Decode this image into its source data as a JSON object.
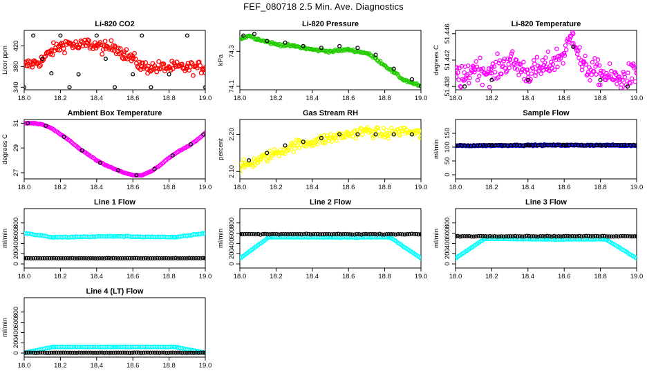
{
  "title": "FEF_080718  2.5 Min. Ave. Diagnostics",
  "colors": {
    "red": "#ff0000",
    "green": "#22cc00",
    "magenta": "#ff00ff",
    "yellow": "#ffff00",
    "blue": "#0000cc",
    "cyan": "#00ffff",
    "black": "#000000"
  },
  "chart_data": [
    {
      "type": "scatter",
      "title": "Li-820 CO2",
      "ylabel": "Licor ppm",
      "xlim": [
        18.0,
        19.0
      ],
      "ylim": [
        335,
        450
      ],
      "xticks": [
        "18.0",
        "18.2",
        "18.4",
        "18.6",
        "18.8",
        "19.0"
      ],
      "yticks": [
        "340",
        "380",
        "420"
      ],
      "series": [
        {
          "color": "red",
          "points": [
            [
              18.0,
              382
            ],
            [
              18.05,
              386
            ],
            [
              18.1,
              392
            ],
            [
              18.15,
              410
            ],
            [
              18.2,
              420
            ],
            [
              18.25,
              425
            ],
            [
              18.3,
              418
            ],
            [
              18.35,
              425
            ],
            [
              18.4,
              420
            ],
            [
              18.45,
              415
            ],
            [
              18.5,
              420
            ],
            [
              18.55,
              405
            ],
            [
              18.6,
              395
            ],
            [
              18.65,
              380
            ],
            [
              18.7,
              378
            ],
            [
              18.8,
              378
            ],
            [
              18.9,
              378
            ],
            [
              19.0,
              378
            ]
          ]
        },
        {
          "color": "black",
          "points": [
            [
              18.0,
              340
            ],
            [
              18.05,
              440
            ],
            [
              18.1,
              395
            ],
            [
              18.15,
              367
            ],
            [
              18.2,
              440
            ],
            [
              18.25,
              340
            ],
            [
              18.3,
              365
            ],
            [
              18.4,
              440
            ],
            [
              18.45,
              395
            ],
            [
              18.5,
              340
            ],
            [
              18.6,
              365
            ],
            [
              18.65,
              440
            ],
            [
              18.7,
              340
            ],
            [
              18.8,
              365
            ],
            [
              18.9,
              440
            ],
            [
              19.0,
              340
            ]
          ]
        }
      ]
    },
    {
      "type": "scatter",
      "title": "Li-820 Pressure",
      "ylabel": "kPa",
      "xlim": [
        18.0,
        19.0
      ],
      "ylim": [
        74.08,
        74.42
      ],
      "xticks": [
        "18.0",
        "18.2",
        "18.4",
        "18.6",
        "18.8",
        "19.0"
      ],
      "yticks": [
        "74.1",
        "74.3"
      ],
      "series": [
        {
          "color": "green",
          "points": [
            [
              18.0,
              74.37
            ],
            [
              18.05,
              74.39
            ],
            [
              18.1,
              74.37
            ],
            [
              18.2,
              74.34
            ],
            [
              18.3,
              74.33
            ],
            [
              18.4,
              74.31
            ],
            [
              18.5,
              74.3
            ],
            [
              18.6,
              74.31
            ],
            [
              18.7,
              74.29
            ],
            [
              18.75,
              74.26
            ],
            [
              18.8,
              74.22
            ],
            [
              18.85,
              74.18
            ],
            [
              18.9,
              74.14
            ],
            [
              18.95,
              74.12
            ],
            [
              19.0,
              74.1
            ]
          ]
        },
        {
          "color": "black",
          "points": [
            [
              18.02,
              74.39
            ],
            [
              18.08,
              74.4
            ],
            [
              18.15,
              74.36
            ],
            [
              18.25,
              74.35
            ],
            [
              18.35,
              74.33
            ],
            [
              18.45,
              74.32
            ],
            [
              18.55,
              74.33
            ],
            [
              18.65,
              74.32
            ],
            [
              18.75,
              74.28
            ],
            [
              18.85,
              74.2
            ],
            [
              18.95,
              74.14
            ],
            [
              19.0,
              74.1
            ]
          ]
        }
      ]
    },
    {
      "type": "scatter",
      "title": "Li-820 Temperature",
      "ylabel": "degrees C",
      "xlim": [
        18.0,
        19.0
      ],
      "ylim": [
        51.4375,
        51.4465
      ],
      "xticks": [
        "18.0",
        "18.2",
        "18.4",
        "18.6",
        "18.8",
        "19.0"
      ],
      "yticks": [
        "51.438",
        "51.442",
        "51.446"
      ],
      "series": [
        {
          "color": "magenta",
          "points": [
            [
              18.0,
              51.44
            ],
            [
              18.05,
              51.439
            ],
            [
              18.1,
              51.441
            ],
            [
              18.2,
              51.44
            ],
            [
              18.3,
              51.442
            ],
            [
              18.4,
              51.44
            ],
            [
              18.5,
              51.441
            ],
            [
              18.6,
              51.443
            ],
            [
              18.65,
              51.446
            ],
            [
              18.7,
              51.441
            ],
            [
              18.8,
              51.44
            ],
            [
              18.9,
              51.439
            ],
            [
              19.0,
              51.44
            ]
          ]
        },
        {
          "color": "black",
          "points": [
            [
              18.05,
              51.438
            ],
            [
              18.2,
              51.439
            ],
            [
              18.4,
              51.439
            ],
            [
              18.65,
              51.444
            ],
            [
              18.8,
              51.439
            ],
            [
              18.95,
              51.438
            ]
          ]
        }
      ]
    },
    {
      "type": "scatter",
      "title": "Ambient Box Temperature",
      "ylabel": "degrees C",
      "xlim": [
        18.0,
        19.0
      ],
      "ylim": [
        26.5,
        31.3
      ],
      "xticks": [
        "18.0",
        "18.2",
        "18.4",
        "18.6",
        "18.8",
        "19.0"
      ],
      "yticks": [
        "27",
        "29",
        "31"
      ],
      "series": [
        {
          "color": "magenta",
          "points": [
            [
              18.0,
              31.0
            ],
            [
              18.05,
              31.0
            ],
            [
              18.1,
              30.9
            ],
            [
              18.15,
              30.6
            ],
            [
              18.2,
              30.1
            ],
            [
              18.25,
              29.6
            ],
            [
              18.3,
              29.0
            ],
            [
              18.35,
              28.5
            ],
            [
              18.4,
              28.0
            ],
            [
              18.45,
              27.6
            ],
            [
              18.5,
              27.3
            ],
            [
              18.55,
              27.0
            ],
            [
              18.6,
              26.8
            ],
            [
              18.65,
              26.8
            ],
            [
              18.7,
              27.1
            ],
            [
              18.75,
              27.6
            ],
            [
              18.8,
              28.2
            ],
            [
              18.85,
              28.7
            ],
            [
              18.9,
              29.1
            ],
            [
              18.95,
              29.6
            ],
            [
              19.0,
              30.2
            ]
          ]
        },
        {
          "color": "black",
          "points": [
            [
              18.02,
              31.0
            ],
            [
              18.12,
              30.8
            ],
            [
              18.22,
              29.9
            ],
            [
              18.32,
              28.8
            ],
            [
              18.42,
              27.8
            ],
            [
              18.52,
              27.2
            ],
            [
              18.62,
              26.8
            ],
            [
              18.72,
              27.3
            ],
            [
              18.82,
              28.4
            ],
            [
              18.92,
              29.3
            ],
            [
              18.99,
              30.1
            ]
          ]
        }
      ]
    },
    {
      "type": "scatter",
      "title": "Gas Stream RH",
      "ylabel": "percent",
      "xlim": [
        18.0,
        19.0
      ],
      "ylim": [
        2.08,
        2.24
      ],
      "xticks": [
        "18.0",
        "18.2",
        "18.4",
        "18.6",
        "18.8",
        "19.0"
      ],
      "yticks": [
        "2.10",
        "2.20"
      ],
      "series": [
        {
          "color": "yellow",
          "points": [
            [
              18.0,
              2.11
            ],
            [
              18.05,
              2.12
            ],
            [
              18.1,
              2.13
            ],
            [
              18.2,
              2.15
            ],
            [
              18.3,
              2.17
            ],
            [
              18.4,
              2.18
            ],
            [
              18.5,
              2.19
            ],
            [
              18.6,
              2.2
            ],
            [
              18.7,
              2.21
            ],
            [
              18.8,
              2.2
            ],
            [
              18.9,
              2.21
            ],
            [
              19.0,
              2.2
            ]
          ]
        },
        {
          "color": "black",
          "points": [
            [
              18.05,
              2.13
            ],
            [
              18.15,
              2.15
            ],
            [
              18.25,
              2.17
            ],
            [
              18.35,
              2.18
            ],
            [
              18.45,
              2.19
            ],
            [
              18.55,
              2.2
            ],
            [
              18.65,
              2.2
            ],
            [
              18.75,
              2.2
            ],
            [
              18.85,
              2.2
            ],
            [
              18.95,
              2.2
            ]
          ]
        }
      ]
    },
    {
      "type": "scatter",
      "title": "Sample Flow",
      "ylabel": "ml/min",
      "xlim": [
        18.0,
        19.0
      ],
      "ylim": [
        -15,
        200
      ],
      "xticks": [
        "18.0",
        "18.2",
        "18.4",
        "18.6",
        "18.8",
        "19.0"
      ],
      "yticks": [
        "0",
        "50",
        "100",
        "150"
      ],
      "series": [
        {
          "color": "blue",
          "points": [
            [
              18.0,
              105
            ],
            [
              18.2,
              106
            ],
            [
              18.4,
              107
            ],
            [
              18.6,
              107
            ],
            [
              18.8,
              107
            ],
            [
              19.0,
              106
            ]
          ]
        },
        {
          "color": "black",
          "points": [
            [
              18.0,
              106
            ],
            [
              18.2,
              107
            ],
            [
              18.4,
              107
            ],
            [
              18.6,
              108
            ],
            [
              18.8,
              107
            ],
            [
              19.0,
              107
            ]
          ]
        }
      ]
    },
    {
      "type": "scatter",
      "title": "Line 1 Flow",
      "ylabel": "ml/min",
      "xlim": [
        18.0,
        19.0
      ],
      "ylim": [
        -80,
        1080
      ],
      "xticks": [
        "18.0",
        "18.2",
        "18.4",
        "18.6",
        "18.8",
        "19.0"
      ],
      "yticks": [
        "0",
        "200",
        "400",
        "600",
        "800"
      ],
      "series": [
        {
          "color": "cyan",
          "points": [
            [
              18.0,
              600
            ],
            [
              18.16,
              520
            ],
            [
              18.5,
              540
            ],
            [
              18.83,
              520
            ],
            [
              19.0,
              600
            ]
          ]
        },
        {
          "color": "black",
          "points": [
            [
              18.0,
              110
            ],
            [
              19.0,
              110
            ]
          ]
        }
      ]
    },
    {
      "type": "scatter",
      "title": "Line 2 Flow",
      "ylabel": "ml/min",
      "xlim": [
        18.0,
        19.0
      ],
      "ylim": [
        -80,
        1080
      ],
      "xticks": [
        "18.0",
        "18.2",
        "18.4",
        "18.6",
        "18.8",
        "19.0"
      ],
      "yticks": [
        "0",
        "200",
        "400",
        "600",
        "800"
      ],
      "series": [
        {
          "color": "cyan",
          "points": [
            [
              18.0,
              110
            ],
            [
              18.16,
              520
            ],
            [
              18.5,
              520
            ],
            [
              18.83,
              520
            ],
            [
              19.0,
              110
            ]
          ]
        },
        {
          "color": "black",
          "points": [
            [
              18.0,
              580
            ],
            [
              19.0,
              580
            ]
          ]
        }
      ]
    },
    {
      "type": "scatter",
      "title": "Line 3 Flow",
      "ylabel": "ml/min",
      "xlim": [
        18.0,
        19.0
      ],
      "ylim": [
        -80,
        1080
      ],
      "xticks": [
        "18.0",
        "18.2",
        "18.4",
        "18.6",
        "18.8",
        "19.0"
      ],
      "yticks": [
        "0",
        "200",
        "400",
        "600",
        "800"
      ],
      "series": [
        {
          "color": "cyan",
          "points": [
            [
              18.0,
              110
            ],
            [
              18.16,
              490
            ],
            [
              18.5,
              480
            ],
            [
              18.83,
              480
            ],
            [
              19.0,
              110
            ]
          ]
        },
        {
          "color": "black",
          "points": [
            [
              18.0,
              540
            ],
            [
              19.0,
              540
            ]
          ]
        }
      ]
    },
    {
      "type": "scatter",
      "title": "Line 4 (LT) Flow",
      "ylabel": "ml/min",
      "xlim": [
        18.0,
        19.0
      ],
      "ylim": [
        -80,
        1080
      ],
      "xticks": [
        "18.0",
        "18.2",
        "18.4",
        "18.6",
        "18.8",
        "19.0"
      ],
      "yticks": [
        "0",
        "200",
        "400",
        "600",
        "800"
      ],
      "series": [
        {
          "color": "cyan",
          "points": [
            [
              18.0,
              5
            ],
            [
              18.16,
              120
            ],
            [
              18.5,
              120
            ],
            [
              18.83,
              120
            ],
            [
              19.0,
              5
            ]
          ]
        },
        {
          "color": "black",
          "points": [
            [
              18.0,
              5
            ],
            [
              19.0,
              5
            ]
          ]
        }
      ]
    }
  ]
}
